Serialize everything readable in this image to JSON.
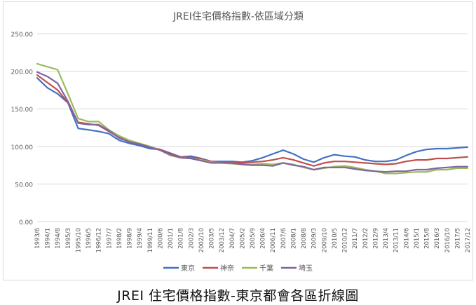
{
  "caption": "JREI 住宅價格指數-東京都會各區折線圖",
  "chart_data": {
    "type": "line",
    "title": "JREI住宅價格指數-依區域分類",
    "xlabel": "",
    "ylabel": "",
    "ylim": [
      0,
      250
    ],
    "yticks": [
      "0.00",
      "50.00",
      "100.00",
      "150.00",
      "200.00",
      "250.00"
    ],
    "x_tick_labels": [
      "1993/6",
      "1994/1",
      "1994/8",
      "1995/3",
      "1995/10",
      "1996/5",
      "1996/12",
      "1997/7",
      "1998/2",
      "1998/9",
      "1999/4",
      "1999/11",
      "2000/6",
      "2001/1",
      "2001/8",
      "2002/3",
      "2002/10",
      "2003/5",
      "2003/12",
      "2004/7",
      "2005/2",
      "2005/9",
      "2006/4",
      "2006/11",
      "2007/6",
      "2008/1",
      "2008/8",
      "2009/3",
      "2009/10",
      "2010/5",
      "2010/12",
      "2011/7",
      "2012/2",
      "2012/9",
      "2013/4",
      "2013/11",
      "2014/6",
      "2015/1",
      "2015/8",
      "2016/3",
      "2016/10",
      "2017/5",
      "2017/12"
    ],
    "grid": true,
    "legend_position": "bottom",
    "colors": {
      "tokyo": "#4472c4",
      "kanagawa": "#c0504d",
      "chiba": "#9bbb59",
      "saitama": "#8064a2"
    },
    "series": [
      {
        "name": "東京",
        "key": "tokyo",
        "values": [
          191,
          178,
          170,
          158,
          124,
          122,
          120,
          117,
          108,
          104,
          101,
          97,
          96,
          91,
          86,
          87,
          84,
          80,
          80,
          80,
          79,
          81,
          85,
          90,
          95,
          90,
          83,
          79,
          85,
          89,
          87,
          86,
          82,
          80,
          80,
          82,
          88,
          93,
          96,
          97,
          97,
          98,
          99
        ]
      },
      {
        "name": "神奈",
        "key": "kanagawa",
        "values": [
          195,
          185,
          175,
          158,
          132,
          130,
          128,
          120,
          112,
          106,
          103,
          99,
          96,
          90,
          86,
          85,
          83,
          80,
          79,
          79,
          78,
          79,
          80,
          82,
          85,
          82,
          78,
          74,
          78,
          80,
          80,
          79,
          78,
          77,
          76,
          77,
          80,
          82,
          82,
          84,
          84,
          85,
          86
        ]
      },
      {
        "name": "千葉",
        "key": "chiba",
        "values": [
          210,
          206,
          202,
          170,
          137,
          133,
          133,
          122,
          114,
          108,
          104,
          100,
          95,
          88,
          85,
          84,
          82,
          79,
          78,
          77,
          76,
          76,
          77,
          76,
          78,
          76,
          72,
          69,
          71,
          73,
          74,
          72,
          69,
          67,
          64,
          64,
          65,
          66,
          66,
          69,
          69,
          71,
          71
        ]
      },
      {
        "name": "埼玉",
        "key": "saitama",
        "values": [
          199,
          193,
          184,
          160,
          131,
          129,
          129,
          121,
          111,
          106,
          103,
          99,
          95,
          89,
          85,
          84,
          81,
          78,
          78,
          78,
          76,
          75,
          75,
          74,
          78,
          75,
          73,
          69,
          72,
          72,
          72,
          70,
          68,
          67,
          66,
          67,
          67,
          69,
          69,
          71,
          72,
          73,
          73
        ]
      }
    ]
  }
}
